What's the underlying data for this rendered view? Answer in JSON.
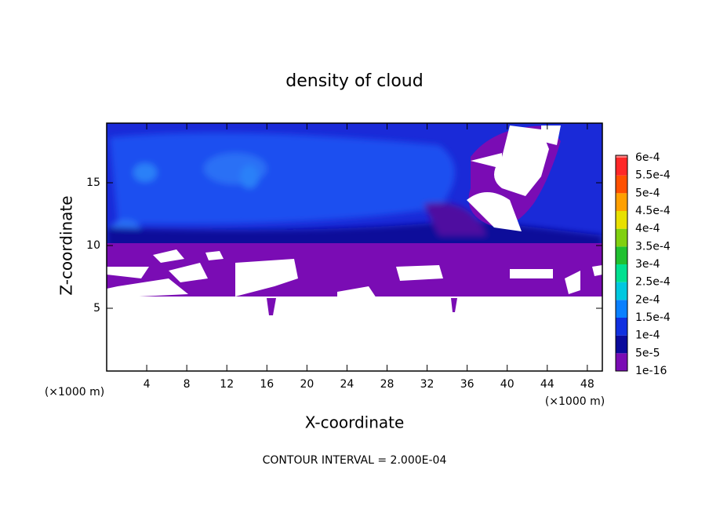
{
  "chart_data": {
    "type": "contour",
    "title": "density of cloud",
    "x_label": "X-coordinate",
    "y_label": "Z-coordinate",
    "x_unit": "(×1000 m)",
    "y_unit": "(×1000 m)",
    "footnote": "CONTOUR INTERVAL = 2.000E-04",
    "xlim": [
      0,
      49.5
    ],
    "ylim": [
      0,
      19.75
    ],
    "xticks": [
      4,
      8,
      12,
      16,
      20,
      24,
      28,
      32,
      36,
      40,
      44,
      48
    ],
    "yticks": [
      5,
      10,
      15
    ],
    "colorbar": {
      "lim": [
        0,
        0.0006
      ],
      "ticks": [
        {
          "value": 1e-16,
          "label": "1e-16"
        },
        {
          "value": 5e-05,
          "label": "5e-5"
        },
        {
          "value": 0.0001,
          "label": "1e-4"
        },
        {
          "value": 0.00015,
          "label": "1.5e-4"
        },
        {
          "value": 0.0002,
          "label": "2e-4"
        },
        {
          "value": 0.00025,
          "label": "2.5e-4"
        },
        {
          "value": 0.0003,
          "label": "3e-4"
        },
        {
          "value": 0.00035,
          "label": "3.5e-4"
        },
        {
          "value": 0.0004,
          "label": "4e-4"
        },
        {
          "value": 0.00045,
          "label": "4.5e-4"
        },
        {
          "value": 0.0005,
          "label": "5e-4"
        },
        {
          "value": 0.00055,
          "label": "5.5e-4"
        },
        {
          "value": 0.0006,
          "label": "6e-4"
        }
      ],
      "colors": [
        "#7a0cb4",
        "#0a0a9c",
        "#1030e0",
        "#0a80ff",
        "#00c8e0",
        "#00e090",
        "#20c030",
        "#80d010",
        "#e8e000",
        "#ffa000",
        "#ff5000",
        "#ff2828",
        "#ff8080"
      ]
    }
  }
}
